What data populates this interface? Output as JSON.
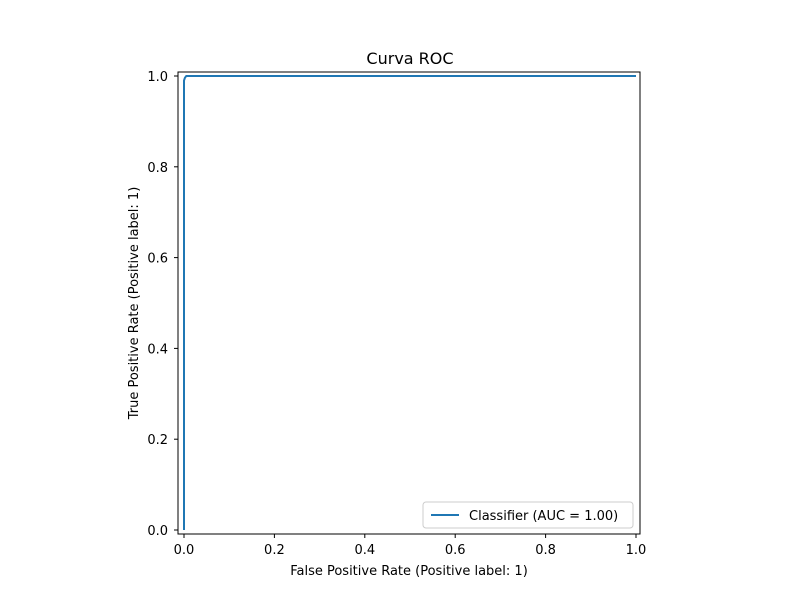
{
  "chart_data": {
    "type": "line",
    "title": "Curva ROC",
    "xlabel": "False Positive Rate (Positive label: 1)",
    "ylabel": "True Positive Rate (Positive label: 1)",
    "xlim": [
      0,
      1
    ],
    "ylim": [
      0,
      1
    ],
    "x_ticks": [
      "0.0",
      "0.2",
      "0.4",
      "0.6",
      "0.8",
      "1.0"
    ],
    "y_ticks": [
      "0.0",
      "0.2",
      "0.4",
      "0.6",
      "0.8",
      "1.0"
    ],
    "grid": false,
    "legend_position": "bottom-right",
    "series": [
      {
        "name": "Classifier (AUC = 1.00)",
        "color": "#1f77b4",
        "x": [
          0.0,
          0.0,
          0.0,
          0.002,
          0.005,
          1.0
        ],
        "y": [
          0.0,
          0.5,
          0.99,
          0.996,
          1.0,
          1.0
        ]
      }
    ]
  }
}
